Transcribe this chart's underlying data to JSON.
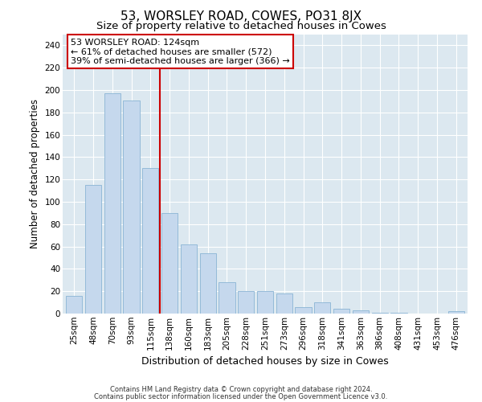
{
  "title": "53, WORSLEY ROAD, COWES, PO31 8JX",
  "subtitle": "Size of property relative to detached houses in Cowes",
  "xlabel": "Distribution of detached houses by size in Cowes",
  "ylabel": "Number of detached properties",
  "categories": [
    "25sqm",
    "48sqm",
    "70sqm",
    "93sqm",
    "115sqm",
    "138sqm",
    "160sqm",
    "183sqm",
    "205sqm",
    "228sqm",
    "251sqm",
    "273sqm",
    "296sqm",
    "318sqm",
    "341sqm",
    "363sqm",
    "386sqm",
    "408sqm",
    "431sqm",
    "453sqm",
    "476sqm"
  ],
  "values": [
    16,
    115,
    197,
    191,
    130,
    90,
    62,
    54,
    28,
    20,
    20,
    18,
    6,
    10,
    4,
    3,
    1,
    1,
    0,
    0,
    2
  ],
  "bar_color": "#c5d8ed",
  "bar_edge_color": "#8ab4d4",
  "vline_x": 4.5,
  "vline_color": "#cc0000",
  "annotation_title": "53 WORSLEY ROAD: 124sqm",
  "annotation_line1": "← 61% of detached houses are smaller (572)",
  "annotation_line2": "39% of semi-detached houses are larger (366) →",
  "annotation_box_color": "#ffffff",
  "annotation_box_edge": "#cc0000",
  "footer1": "Contains HM Land Registry data © Crown copyright and database right 2024.",
  "footer2": "Contains public sector information licensed under the Open Government Licence v3.0.",
  "ylim": [
    0,
    250
  ],
  "yticks": [
    0,
    20,
    40,
    60,
    80,
    100,
    120,
    140,
    160,
    180,
    200,
    220,
    240
  ],
  "fig_background": "#ffffff",
  "plot_background": "#dce8f0",
  "title_fontsize": 11,
  "subtitle_fontsize": 9.5,
  "tick_fontsize": 7.5,
  "ylabel_fontsize": 8.5,
  "xlabel_fontsize": 9,
  "annotation_fontsize": 8,
  "footer_fontsize": 6
}
